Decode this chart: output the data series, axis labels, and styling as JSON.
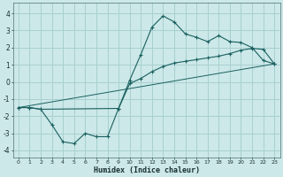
{
  "xlabel": "Humidex (Indice chaleur)",
  "xlim": [
    -0.5,
    23.5
  ],
  "ylim": [
    -4.4,
    4.6
  ],
  "xticks": [
    0,
    1,
    2,
    3,
    4,
    5,
    6,
    7,
    8,
    9,
    10,
    11,
    12,
    13,
    14,
    15,
    16,
    17,
    18,
    19,
    20,
    21,
    22,
    23
  ],
  "yticks": [
    -4,
    -3,
    -2,
    -1,
    0,
    1,
    2,
    3,
    4
  ],
  "background_color": "#cce8e8",
  "grid_color": "#a8d0d0",
  "line_color": "#1a6060",
  "line1_x": [
    0,
    1,
    2,
    3,
    4,
    5,
    6,
    7,
    8,
    9,
    10,
    11,
    12,
    13,
    14,
    15,
    16,
    17,
    18,
    19,
    20,
    21,
    22,
    23
  ],
  "line1_y": [
    -1.5,
    -1.5,
    -1.6,
    -2.5,
    -3.5,
    -3.6,
    -3.0,
    -3.2,
    -3.2,
    -1.55,
    0.1,
    1.6,
    3.2,
    3.85,
    3.5,
    2.8,
    2.6,
    2.35,
    2.7,
    2.35,
    2.3,
    2.0,
    1.25,
    1.05
  ],
  "line2_x": [
    0,
    1,
    2,
    9,
    10,
    11,
    12,
    13,
    14,
    15,
    16,
    17,
    18,
    19,
    20,
    21,
    22,
    23
  ],
  "line2_y": [
    -1.5,
    -1.5,
    -1.6,
    -1.55,
    -0.1,
    0.2,
    0.6,
    0.9,
    1.1,
    1.2,
    1.3,
    1.4,
    1.5,
    1.65,
    1.85,
    1.95,
    1.9,
    1.05
  ],
  "line3_x": [
    0,
    23
  ],
  "line3_y": [
    -1.5,
    1.05
  ]
}
